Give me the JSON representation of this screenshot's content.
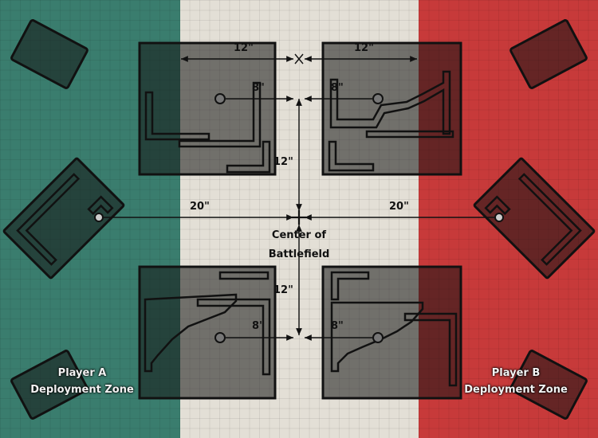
{
  "colors": {
    "zone_a": "#3a7d6e",
    "neutral": "#e3dfd6",
    "zone_b": "#c73a3a",
    "building_fill": "rgba(20,20,20,0.55)",
    "outline": "#111111",
    "zone_label": "#f2f2f2"
  },
  "distances": {
    "top_left_width": "12\"",
    "top_right_width": "12\"",
    "top_left_objective": "8\"",
    "top_right_objective": "8\"",
    "vertical_top": "12\"",
    "left_center": "20\"",
    "right_center": "20\"",
    "vertical_bottom": "12\"",
    "bottom_left_objective": "8\"",
    "bottom_right_objective": "8\""
  },
  "center": {
    "line1": "Center of",
    "line2": "Battlefield"
  },
  "player_a": {
    "line1": "Player A",
    "line2": "Deployment Zone"
  },
  "player_b": {
    "line1": "Player B",
    "line2": "Deployment Zone"
  }
}
